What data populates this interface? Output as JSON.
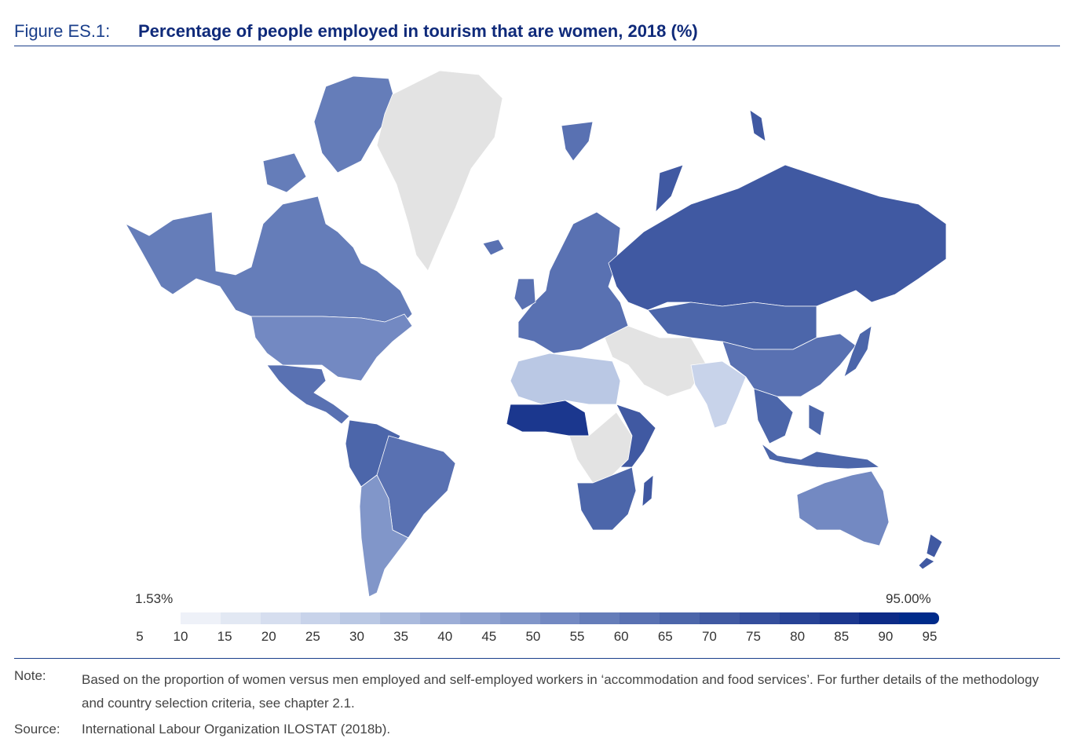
{
  "header": {
    "figure_label": "Figure ES.1:",
    "title": "Percentage of people employed in tourism that are women, 2018 (%)"
  },
  "map": {
    "no_data_color": "#e3e3e3",
    "border_color": "#ffffff",
    "regions": [
      {
        "name": "north-america-north",
        "value": 55
      },
      {
        "name": "usa",
        "value": 50
      },
      {
        "name": "central-america",
        "value": 60
      },
      {
        "name": "south-america-north",
        "value": 65
      },
      {
        "name": "brazil",
        "value": 60
      },
      {
        "name": "southern-cone",
        "value": 45
      },
      {
        "name": "greenland",
        "value": null
      },
      {
        "name": "europe",
        "value": 60
      },
      {
        "name": "russia",
        "value": 70
      },
      {
        "name": "central-asia",
        "value": 65
      },
      {
        "name": "china",
        "value": 60
      },
      {
        "name": "india",
        "value": 20
      },
      {
        "name": "southeast-asia",
        "value": 65
      },
      {
        "name": "north-africa",
        "value": 25
      },
      {
        "name": "west-africa",
        "value": 85
      },
      {
        "name": "central-africa",
        "value": null
      },
      {
        "name": "east-africa",
        "value": 70
      },
      {
        "name": "southern-africa",
        "value": 65
      },
      {
        "name": "madagascar",
        "value": 70
      },
      {
        "name": "middle-east",
        "value": null
      },
      {
        "name": "australia",
        "value": 50
      },
      {
        "name": "new-zealand",
        "value": 70
      },
      {
        "name": "japan",
        "value": 65
      },
      {
        "name": "indonesia",
        "value": 65
      }
    ]
  },
  "legend": {
    "min_label": "1.53%",
    "max_label": "95.00%",
    "colors": [
      "#eef1f8",
      "#e2e8f3",
      "#d6deef",
      "#c8d3ea",
      "#bac8e4",
      "#abbbdd",
      "#9daed7",
      "#8fa2d0",
      "#8196c9",
      "#7389c2",
      "#657db9",
      "#5971b2",
      "#4c66aa",
      "#4059a2",
      "#344e9c",
      "#274295",
      "#1b378e",
      "#0d2b87",
      "#002b8a"
    ],
    "ticks": [
      "5",
      "10",
      "15",
      "20",
      "25",
      "30",
      "35",
      "40",
      "45",
      "50",
      "55",
      "60",
      "65",
      "70",
      "75",
      "80",
      "85",
      "90",
      "95"
    ]
  },
  "notes": {
    "note_label": "Note:",
    "note_text": "Based on the proportion of women versus men employed and self-employed workers in ‘accommodation and food services’. For further details of the methodology and country selection criteria, see chapter 2.1.",
    "source_label": "Source:",
    "source_text": "International Labour Organization ILOSTAT (2018b)."
  }
}
